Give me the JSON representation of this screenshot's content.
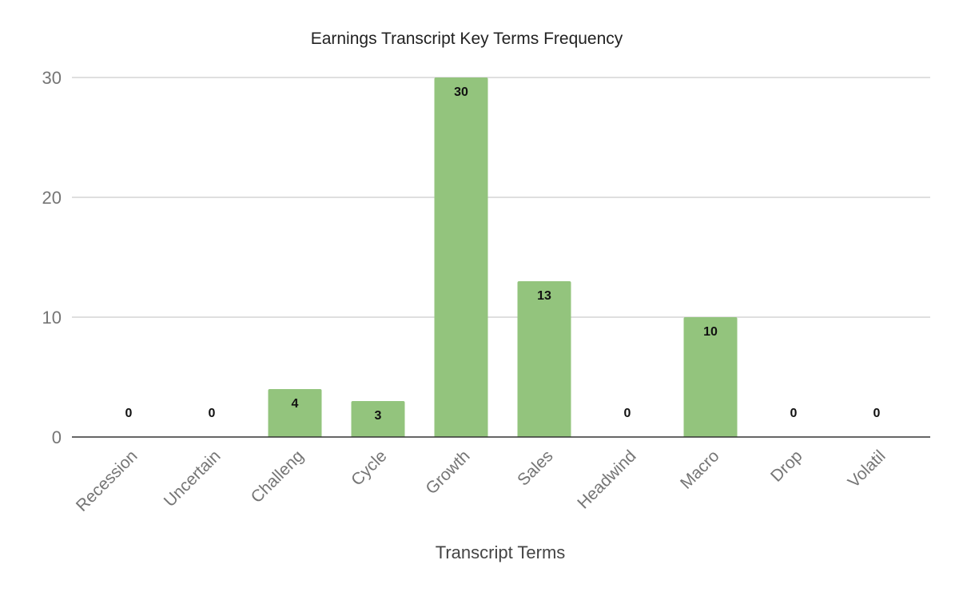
{
  "chart_data": {
    "type": "bar",
    "title": "Earnings Transcript Key Terms Frequency",
    "xlabel": "Transcript Terms",
    "ylabel": "",
    "categories": [
      "Recession",
      "Uncertain",
      "Challeng",
      "Cycle",
      "Growth",
      "Sales",
      "Headwind",
      "Macro",
      "Drop",
      "Volatil"
    ],
    "values": [
      0,
      0,
      4,
      3,
      30,
      13,
      0,
      10,
      0,
      0
    ],
    "data_labels": [
      "0",
      "0",
      "4",
      "3",
      "30",
      "13",
      "0",
      "10",
      "0",
      "0"
    ],
    "ylim": [
      0,
      30
    ],
    "yticks": [
      0,
      10,
      20,
      30
    ],
    "grid": true,
    "legend": "none",
    "bar_color": "#93c47d"
  }
}
